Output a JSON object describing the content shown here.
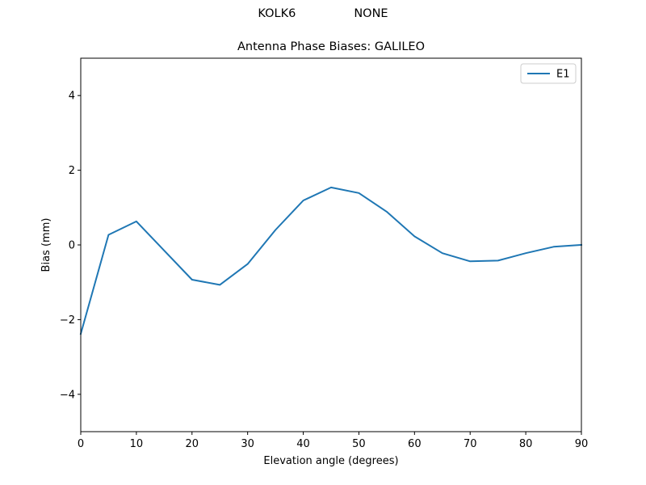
{
  "figure": {
    "suptitle_left": "KOLK6",
    "suptitle_right": "NONE",
    "title": "Antenna Phase Biases: GALILEO"
  },
  "colors": {
    "series_E1": "#1f77b4",
    "axes": "#000000",
    "background": "#ffffff"
  },
  "chart_data": {
    "type": "line",
    "title": "Antenna Phase Biases: GALILEO",
    "suptitle": "KOLK6            NONE",
    "xlabel": "Elevation angle (degrees)",
    "ylabel": "Bias (mm)",
    "xlim": [
      0,
      90
    ],
    "ylim": [
      -5,
      5
    ],
    "xticks": [
      0,
      10,
      20,
      30,
      40,
      50,
      60,
      70,
      80,
      90
    ],
    "yticks": [
      -4,
      -2,
      0,
      2,
      4
    ],
    "ytick_labels": [
      "−4",
      "−2",
      "0",
      "2",
      "4"
    ],
    "grid": false,
    "legend_position": "upper right",
    "x": [
      0,
      5,
      10,
      15,
      20,
      25,
      30,
      35,
      40,
      45,
      50,
      55,
      60,
      65,
      70,
      75,
      80,
      85,
      90
    ],
    "series": [
      {
        "name": "E1",
        "color": "#1f77b4",
        "values": [
          -2.38,
          0.27,
          0.63,
          -0.15,
          -0.93,
          -1.07,
          -0.51,
          0.4,
          1.19,
          1.54,
          1.39,
          0.89,
          0.23,
          -0.22,
          -0.44,
          -0.42,
          -0.22,
          -0.05,
          0.0
        ]
      }
    ]
  }
}
